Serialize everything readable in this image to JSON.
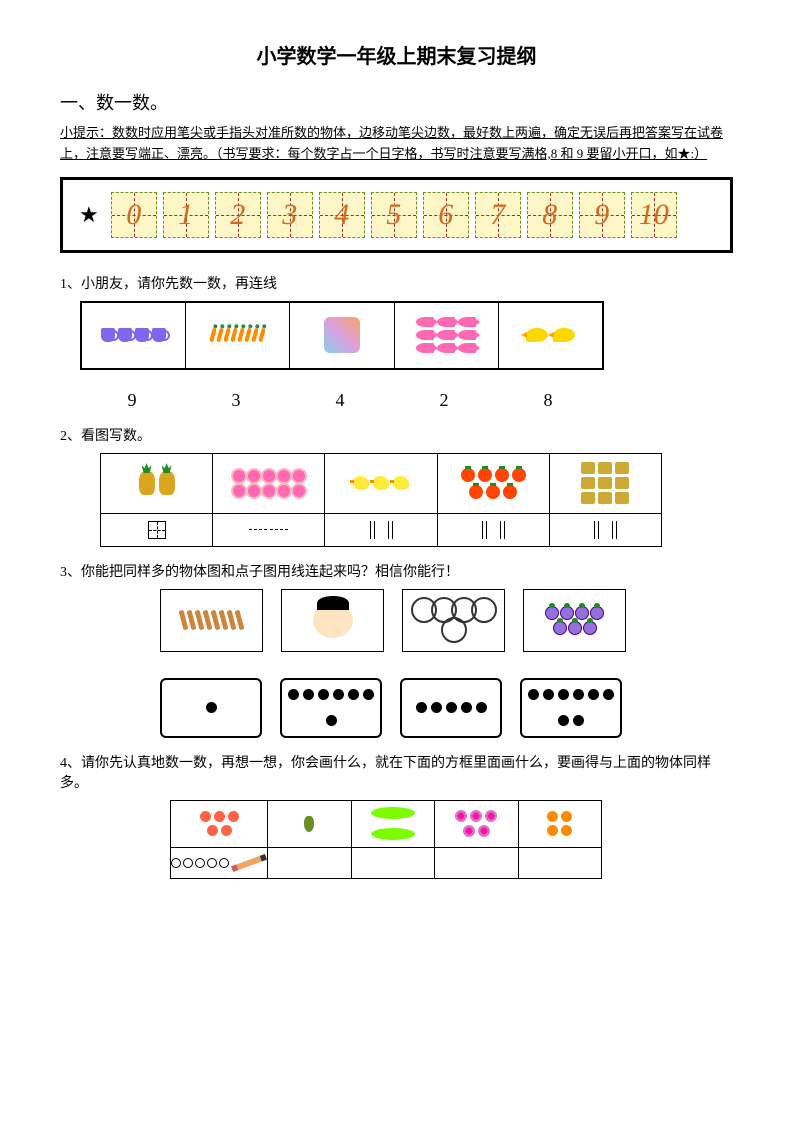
{
  "title": "小学数学一年级上期末复习提纲",
  "section1": "一、数一数。",
  "hint": "小提示：数数时应用笔尖或手指头对准所数的物体，边移动笔尖边数，最好数上两遍，确定无误后再把答案写在试卷上，注意要写端正、漂亮。（书写要求：每个数字占一个日字格，书写时注意要写满格,8 和 9 要留小开口，如★:）",
  "digits": [
    "0",
    "1",
    "2",
    "3",
    "4",
    "5",
    "6",
    "7",
    "8",
    "9",
    "10"
  ],
  "q1": {
    "text": "1、小朋友，请你先数一数，再连线",
    "counts": {
      "cups": 4,
      "carrots": 8,
      "horse": 1,
      "fish": 9,
      "birds": 2
    },
    "numbers": [
      "9",
      "3",
      "4",
      "2",
      "8"
    ]
  },
  "q2": {
    "text": "2、看图写数。",
    "counts": {
      "pineapples": 2,
      "flowers": 10,
      "ducks": 3,
      "tomatoes": 7,
      "cows": 9
    }
  },
  "q3": {
    "text": "3、你能把同样多的物体图和点子图用线连起来吗？相信你能行！",
    "counts": {
      "wheat": 8,
      "face": 1,
      "rings": 5,
      "grapes": 7
    },
    "dots": [
      1,
      7,
      5,
      8
    ]
  },
  "q4": {
    "text": "4、请你先认真地数一数，再想一想，你会画什么，就在下面的方框里面画什么，要画得与上面的物体同样多。",
    "counts": {
      "apples": 5,
      "pepper": 1,
      "peas": 2,
      "pflowers": 5,
      "apricots": 4
    },
    "drawn_circles": 5
  },
  "colors": {
    "digit_bg": "#fdf6c6",
    "digit_fg": "#d2691e",
    "cup": "#7b68ee",
    "fish": "#ff69b4",
    "bird": "#ffd700",
    "tomato": "#ff4500",
    "wheat": "#cd853f"
  }
}
